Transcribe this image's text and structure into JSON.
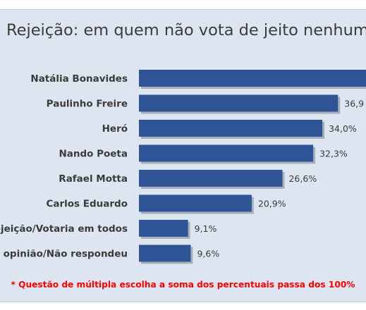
{
  "chart_data": {
    "type": "bar",
    "orientation": "horizontal",
    "title": "Rejeição: em quem não vota de jeito nenhum",
    "categories": [
      "Natália Bonavides",
      "Paulinho Freire",
      "Heró",
      "Nando Poeta",
      "Rafael Motta",
      "Carlos Eduardo",
      "Não rejeição/Votaria em todos",
      "Sem opinião/Não respondeu"
    ],
    "values": [
      45.8,
      36.9,
      34.0,
      32.3,
      26.6,
      20.9,
      9.1,
      9.6
    ],
    "value_labels": [
      "",
      "36,9",
      "34,0%",
      "32,3%",
      "26,6%",
      "20,9%",
      "9,1%",
      "9,6%"
    ],
    "xlim": [
      0,
      50
    ],
    "grid": false,
    "legend": "none",
    "bar_color": "#2f5496",
    "footnote": "* Questão de múltipla escolha a soma dos percentuais passa dos 100%"
  }
}
